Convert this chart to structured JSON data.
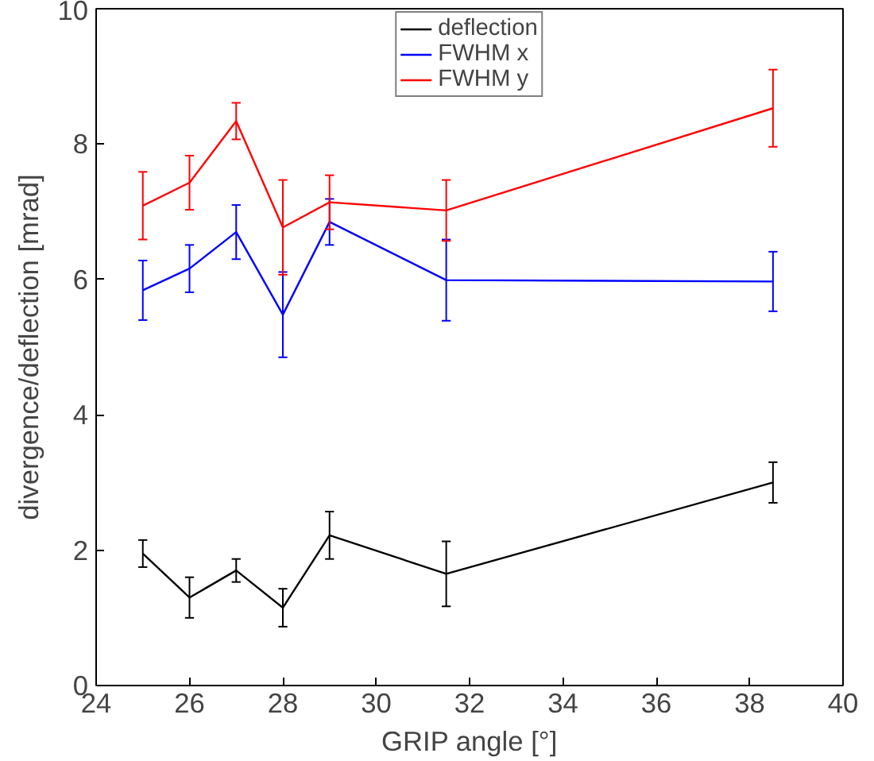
{
  "chart_data": {
    "type": "line",
    "xlabel": "GRIP angle [°]",
    "ylabel": "divergence/deflection [mrad]",
    "x": [
      25,
      26,
      27,
      28,
      29,
      31.5,
      38.5
    ],
    "xlim": [
      24,
      40
    ],
    "xticks": [
      24,
      26,
      28,
      30,
      32,
      34,
      36,
      38,
      40
    ],
    "ylim": [
      0,
      10
    ],
    "yticks": [
      0,
      2,
      4,
      6,
      8,
      10
    ],
    "grid": false,
    "legend": "top",
    "marker": "none",
    "line_style": "solid",
    "series": [
      {
        "name": "deflection",
        "color": "#000000",
        "values": [
          1.95,
          1.3,
          1.7,
          1.15,
          2.22,
          1.65,
          3.0
        ],
        "errors": [
          0.2,
          0.3,
          0.17,
          0.28,
          0.35,
          0.48,
          0.3
        ]
      },
      {
        "name": "FWHM x",
        "color": "#0000ff",
        "values": [
          5.84,
          6.16,
          6.7,
          5.48,
          6.85,
          5.99,
          5.97
        ],
        "errors": [
          0.44,
          0.35,
          0.4,
          0.63,
          0.34,
          0.6,
          0.44
        ]
      },
      {
        "name": "FWHM y",
        "color": "#ff0000",
        "values": [
          7.09,
          7.43,
          8.34,
          6.77,
          7.14,
          7.02,
          8.53
        ],
        "errors": [
          0.5,
          0.4,
          0.27,
          0.7,
          0.4,
          0.45,
          0.57
        ]
      }
    ]
  }
}
